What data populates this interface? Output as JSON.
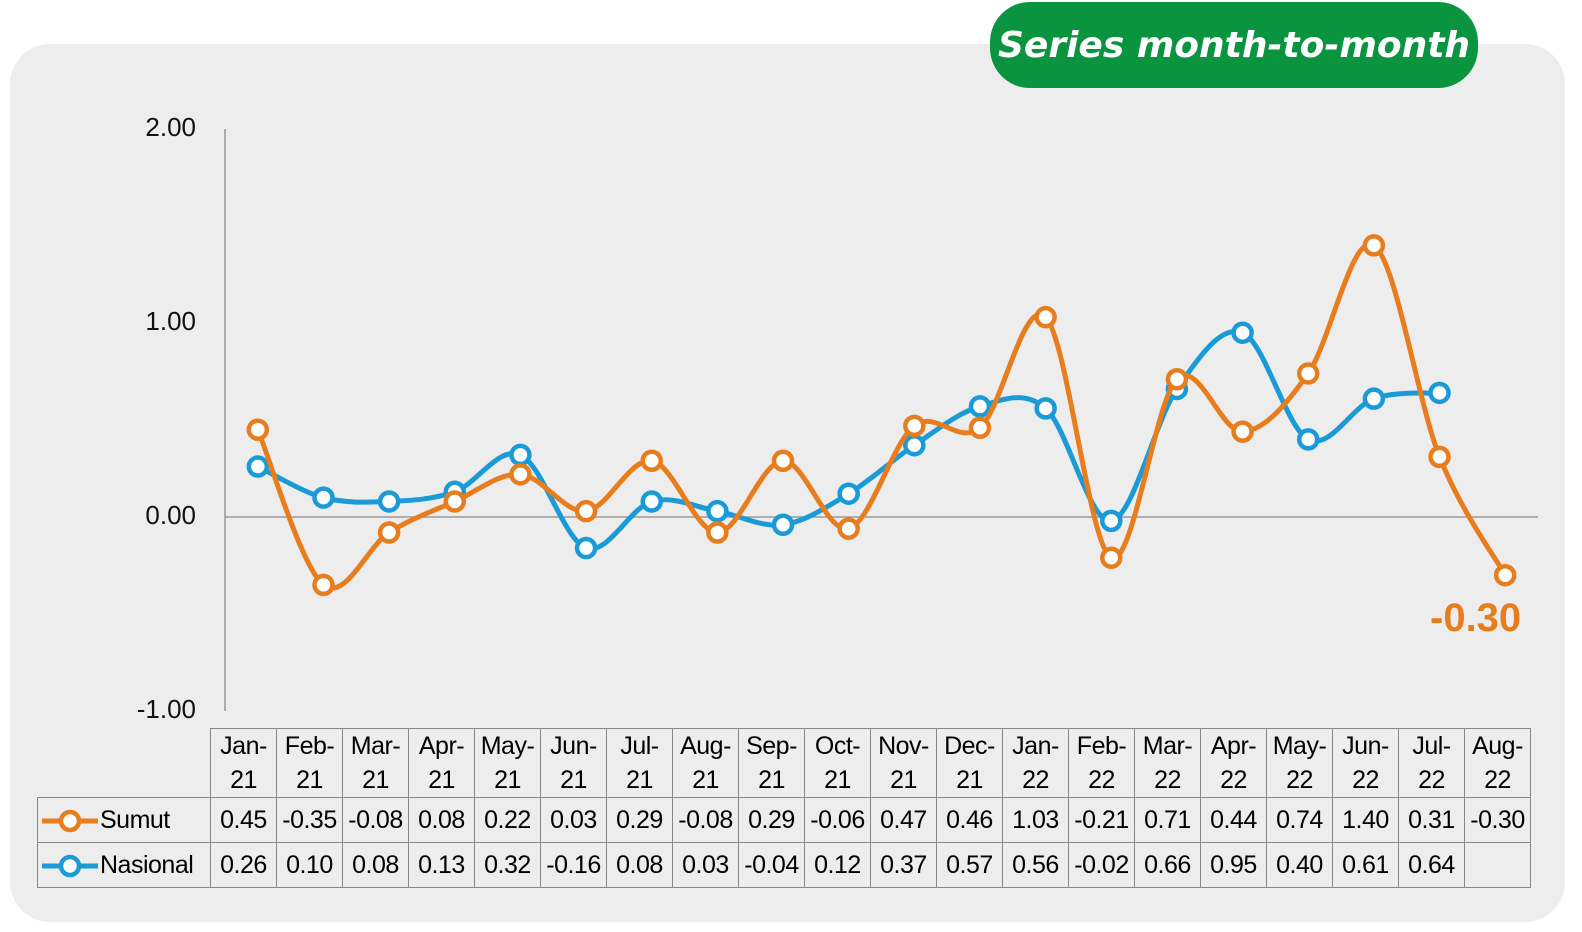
{
  "chart_data": {
    "type": "line",
    "title": "Series month-to-month",
    "categories": [
      "Jan-21",
      "Feb-21",
      "Mar-21",
      "Apr-21",
      "May-21",
      "Jun-21",
      "Jul-21",
      "Aug-21",
      "Sep-21",
      "Oct-21",
      "Nov-21",
      "Dec-21",
      "Jan-22",
      "Feb-22",
      "Mar-22",
      "Apr-22",
      "May-22",
      "Jun-22",
      "Jul-22",
      "Aug-22"
    ],
    "series": [
      {
        "name": "Sumut",
        "color": "#e87d1e",
        "values": [
          0.45,
          -0.35,
          -0.08,
          0.08,
          0.22,
          0.03,
          0.29,
          -0.08,
          0.29,
          -0.06,
          0.47,
          0.46,
          1.03,
          -0.21,
          0.71,
          0.44,
          0.74,
          1.4,
          0.31,
          -0.3
        ],
        "value_labels": [
          "0.45",
          "-0.35",
          "-0.08",
          "0.08",
          "0.22",
          "0.03",
          "0.29",
          "-0.08",
          "0.29",
          "-0.06",
          "0.47",
          "0.46",
          "1.03",
          "-0.21",
          "0.71",
          "0.44",
          "0.74",
          "1.40",
          "0.31",
          "-0.30"
        ]
      },
      {
        "name": "Nasional",
        "color": "#1a9ad6",
        "values": [
          0.26,
          0.1,
          0.08,
          0.13,
          0.32,
          -0.16,
          0.08,
          0.03,
          -0.04,
          0.12,
          0.37,
          0.57,
          0.56,
          -0.02,
          0.66,
          0.95,
          0.4,
          0.61,
          0.64,
          null
        ],
        "value_labels": [
          "0.26",
          "0.10",
          "0.08",
          "0.13",
          "0.32",
          "-0.16",
          "0.08",
          "0.03",
          "-0.04",
          "0.12",
          "0.37",
          "0.57",
          "0.56",
          "-0.02",
          "0.66",
          "0.95",
          "0.40",
          "0.61",
          "0.64",
          null
        ]
      }
    ],
    "annotation": "-0.30",
    "ylim": [
      -1,
      2
    ],
    "yticks": [
      {
        "value": -1,
        "label": "-1.00"
      },
      {
        "value": 0,
        "label": "0.00"
      },
      {
        "value": 1,
        "label": "1.00"
      },
      {
        "value": 2,
        "label": "2.00"
      }
    ],
    "grid": false
  }
}
